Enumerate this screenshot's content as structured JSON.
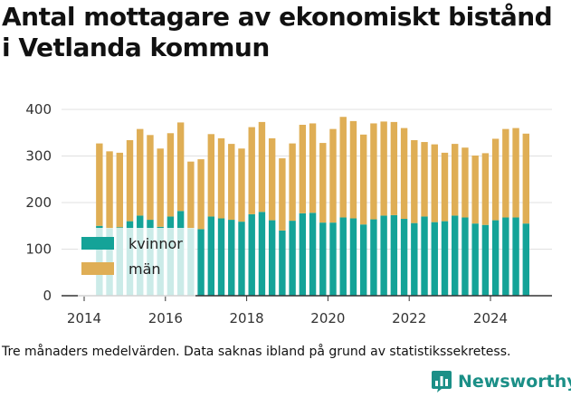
{
  "title_lines": [
    "Antal mottagare av ekonomiskt bistånd",
    "i Vetlanda kommun"
  ],
  "note": "Tre månaders medelvärden. Data saknas ibland på grund av statistikssekretess.",
  "brand": {
    "name": "Newsworthy",
    "icon": "bar-chart-logo-icon",
    "color": "#1b8f87"
  },
  "colors": {
    "kvinnor": "#14a398",
    "man": "#dfae55",
    "grid": "#e0e0e0",
    "axis": "#333333"
  },
  "chart_data": {
    "type": "bar",
    "stacked": true,
    "ylim": [
      0,
      400
    ],
    "yticks": [
      0,
      100,
      200,
      300,
      400
    ],
    "xticks": [
      "2014",
      "2016",
      "2018",
      "2020",
      "2022",
      "2024"
    ],
    "x_start_year": 2014,
    "grid": true,
    "legend_position": "bottom-left",
    "categories": [
      "2014 Q2",
      "2014 Q3",
      "2014 Q4",
      "2015 Q1",
      "2015 Q2",
      "2015 Q3",
      "2015 Q4",
      "2016 Q1",
      "2016 Q2",
      "2016 Q3",
      "2016 Q4",
      "2017 Q1",
      "2017 Q2",
      "2017 Q3",
      "2017 Q4",
      "2018 Q1",
      "2018 Q2",
      "2018 Q3",
      "2018 Q4",
      "2019 Q1",
      "2019 Q2",
      "2019 Q3",
      "2019 Q4",
      "2020 Q1",
      "2020 Q2",
      "2020 Q3",
      "2020 Q4",
      "2021 Q1",
      "2021 Q2",
      "2021 Q3",
      "2021 Q4",
      "2022 Q1",
      "2022 Q2",
      "2022 Q3",
      "2022 Q4",
      "2023 Q1",
      "2023 Q2",
      "2023 Q3",
      "2023 Q4",
      "2024 Q1",
      "2024 Q2",
      "2024 Q3",
      "2024 Q4"
    ],
    "series": [
      {
        "name": "kvinnor",
        "values": [
          150,
          145,
          147,
          160,
          172,
          163,
          148,
          170,
          182,
          145,
          143,
          170,
          166,
          163,
          159,
          175,
          180,
          162,
          140,
          161,
          177,
          178,
          157,
          157,
          168,
          166,
          153,
          164,
          172,
          173,
          165,
          156,
          170,
          158,
          160,
          172,
          168,
          155,
          152,
          162,
          168,
          168,
          155
        ]
      },
      {
        "name": "män",
        "values": [
          177,
          165,
          160,
          174,
          186,
          182,
          168,
          179,
          190,
          143,
          150,
          177,
          172,
          163,
          157,
          187,
          193,
          176,
          155,
          166,
          190,
          192,
          171,
          201,
          216,
          209,
          193,
          206,
          202,
          200,
          195,
          178,
          160,
          167,
          147,
          154,
          150,
          146,
          154,
          175,
          190,
          192,
          193
        ]
      }
    ]
  }
}
